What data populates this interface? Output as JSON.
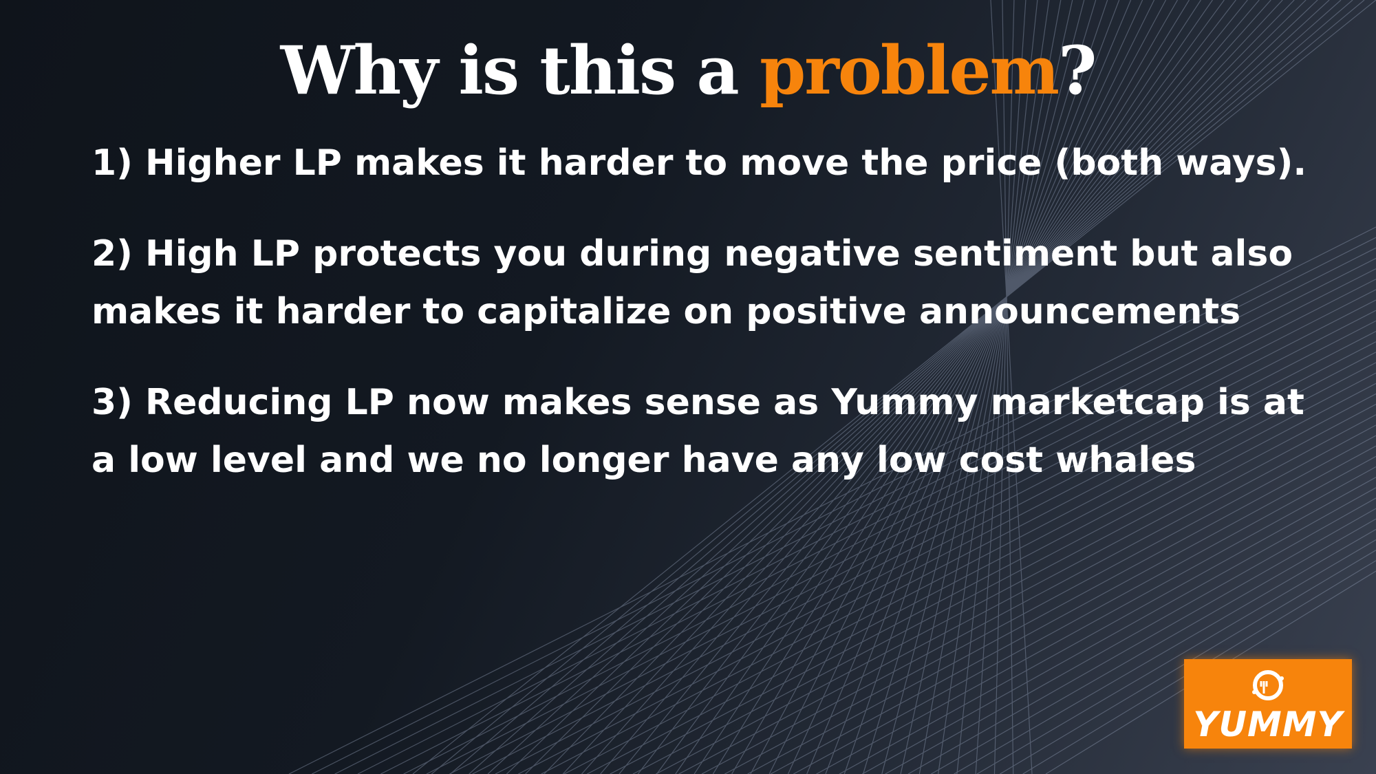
{
  "slide": {
    "title_prefix": "Why is this a ",
    "title_accent": "problem",
    "title_suffix": "?",
    "points": [
      "1) Higher LP makes it harder to move the price (both ways).",
      "2) High LP protects you during negative sentiment but also makes it harder to capitalize on positive announcements",
      "3) Reducing LP now makes sense as Yummy marketcap is at a low level and we no longer have any low cost whales"
    ]
  },
  "logo": {
    "text": "YUMMY",
    "icon": "yummy-logo-icon"
  },
  "colors": {
    "accent": "#f7840c",
    "text": "#ffffff",
    "background": "#131922",
    "lines": "#8a96ad"
  }
}
